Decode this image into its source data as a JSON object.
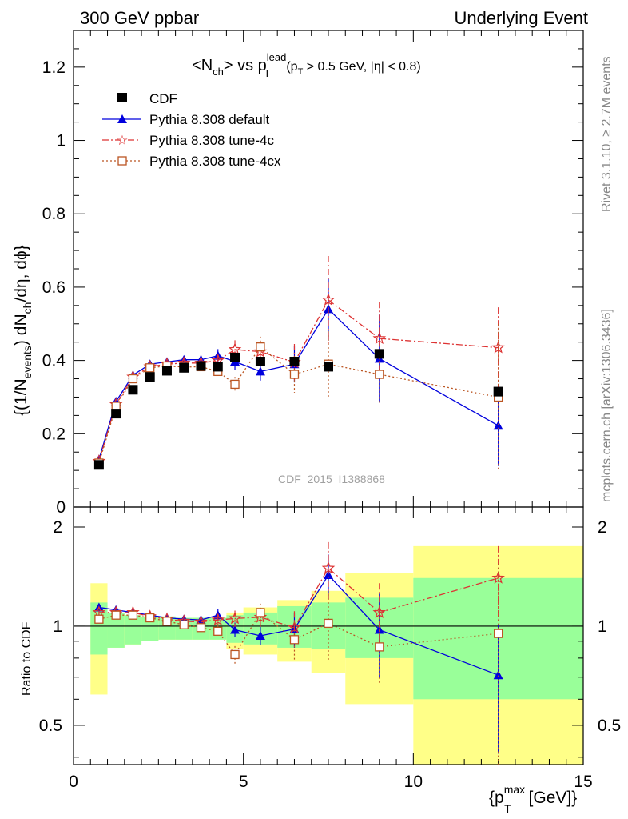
{
  "header": {
    "left_title": "300 GeV ppbar",
    "right_title": "Underlying Event"
  },
  "plot_title": {
    "lt": "<",
    "n_main": "N",
    "n_sub": "ch",
    "gt_vs": "> vs p",
    "p_sup": "lead",
    "p_sub": "T",
    "cuts_open": "(p",
    "cuts_sub": "T",
    "cuts_rest": " > 0.5 GeV, |η| < 0.8)"
  },
  "side_labels": {
    "rivet": "Rivet 3.1.10, ≥ 2.7M events",
    "mcplots": "mcplots.cern.ch [arXiv:1306.3436]"
  },
  "watermark": "CDF_2015_I1388868",
  "ylabel_main": {
    "p1": "{(1/N",
    "s1": "events",
    "p2": ") dN",
    "s2": "ch",
    "p3": "/dη, dϕ}"
  },
  "ylabel_ratio": "Ratio to CDF",
  "xlabel": {
    "p1": "{p",
    "sup": "max",
    "sub": "T",
    "p2": " [GeV]}"
  },
  "legend": [
    {
      "label": "CDF"
    },
    {
      "label": "Pythia 8.308 default"
    },
    {
      "label": "Pythia 8.308 tune-4c"
    },
    {
      "label": "Pythia 8.308 tune-4cx"
    }
  ],
  "chart_data": {
    "type": "scatter",
    "x_range": [
      0,
      15
    ],
    "main_ylim": [
      0,
      1.3
    ],
    "ratio_ylim": [
      0.38,
      2.3
    ],
    "ratio_log_scale": true,
    "x_ticks": [
      "0",
      "5",
      "10",
      "15"
    ],
    "main_y_ticks": [
      "0",
      "0.2",
      "0.4",
      "0.6",
      "0.8",
      "1",
      "1.2"
    ],
    "ratio_y_ticks": [
      "0.5",
      "1",
      "2"
    ],
    "colors": {
      "cdf": "#000000",
      "default": "#0000dd",
      "tune4c": "#dd3333",
      "tune4cx": "#bb5522",
      "band_inner": "#99ff99",
      "band_outer": "#ffff88"
    },
    "x": [
      0.75,
      1.25,
      1.75,
      2.25,
      2.75,
      3.25,
      3.75,
      4.25,
      4.75,
      5.5,
      6.5,
      7.5,
      9.0,
      12.5
    ],
    "bins": [
      [
        0.5,
        1.0
      ],
      [
        1.0,
        1.5
      ],
      [
        1.5,
        2.0
      ],
      [
        2.0,
        2.5
      ],
      [
        2.5,
        3.0
      ],
      [
        3.0,
        3.5
      ],
      [
        3.5,
        4.0
      ],
      [
        4.0,
        4.5
      ],
      [
        4.5,
        5.0
      ],
      [
        5.0,
        6.0
      ],
      [
        6.0,
        7.0
      ],
      [
        7.0,
        8.0
      ],
      [
        8.0,
        10.0
      ],
      [
        10.0,
        15.0
      ]
    ],
    "series": [
      {
        "name": "CDF",
        "key": "cdf",
        "values": [
          0.115,
          0.255,
          0.32,
          0.355,
          0.372,
          0.38,
          0.385,
          0.383,
          0.408,
          0.397,
          0.397,
          0.383,
          0.418,
          0.315
        ]
      },
      {
        "name": "Pythia 8.308 default",
        "key": "default",
        "values": [
          0.13,
          0.288,
          0.36,
          0.39,
          0.396,
          0.402,
          0.402,
          0.413,
          0.397,
          0.37,
          0.39,
          0.54,
          0.405,
          0.222
        ],
        "errors": [
          0.004,
          0.006,
          0.007,
          0.008,
          0.009,
          0.01,
          0.012,
          0.018,
          0.022,
          0.025,
          0.05,
          0.085,
          0.12,
          0.11
        ]
      },
      {
        "name": "Pythia 8.308 tune-4c",
        "key": "tune4c",
        "values": [
          0.125,
          0.28,
          0.355,
          0.383,
          0.39,
          0.393,
          0.393,
          0.4,
          0.43,
          0.424,
          0.395,
          0.565,
          0.46,
          0.435
        ],
        "errors": [
          0.004,
          0.006,
          0.007,
          0.008,
          0.009,
          0.01,
          0.012,
          0.015,
          0.025,
          0.03,
          0.05,
          0.12,
          0.1,
          0.11
        ]
      },
      {
        "name": "Pythia 8.308 tune-4cx",
        "key": "tune4cx",
        "values": [
          0.12,
          0.275,
          0.35,
          0.38,
          0.385,
          0.382,
          0.383,
          0.37,
          0.335,
          0.437,
          0.362,
          0.39,
          0.362,
          0.3
        ],
        "errors": [
          0.004,
          0.006,
          0.007,
          0.008,
          0.009,
          0.01,
          0.012,
          0.015,
          0.02,
          0.028,
          0.05,
          0.09,
          0.08,
          0.2
        ]
      }
    ],
    "ratio_series": [
      {
        "key": "default",
        "values": [
          1.14,
          1.12,
          1.1,
          1.08,
          1.06,
          1.05,
          1.045,
          1.08,
          0.975,
          0.935,
          0.98,
          1.43,
          0.975,
          0.71
        ],
        "errors": [
          0.02,
          0.02,
          0.02,
          0.02,
          0.02,
          0.02,
          0.03,
          0.045,
          0.05,
          0.06,
          0.12,
          0.22,
          0.28,
          0.3
        ]
      },
      {
        "key": "tune4c",
        "values": [
          1.1,
          1.1,
          1.1,
          1.07,
          1.05,
          1.035,
          1.03,
          1.045,
          1.055,
          1.065,
          0.99,
          1.5,
          1.1,
          1.4
        ],
        "errors": [
          0.02,
          0.02,
          0.02,
          0.02,
          0.02,
          0.02,
          0.03,
          0.04,
          0.06,
          0.07,
          0.12,
          0.3,
          0.25,
          0.35
        ]
      },
      {
        "key": "tune4cx",
        "values": [
          1.05,
          1.08,
          1.08,
          1.06,
          1.035,
          1.01,
          0.99,
          0.965,
          0.82,
          1.1,
          0.91,
          1.02,
          0.865,
          0.95
        ],
        "errors": [
          0.02,
          0.02,
          0.02,
          0.02,
          0.02,
          0.02,
          0.03,
          0.04,
          0.05,
          0.07,
          0.12,
          0.23,
          0.2,
          0.6
        ]
      }
    ],
    "ratio_band_inner": [
      [
        0.82,
        1.18
      ],
      [
        0.86,
        1.1
      ],
      [
        0.88,
        1.08
      ],
      [
        0.9,
        1.07
      ],
      [
        0.91,
        1.07
      ],
      [
        0.91,
        1.06
      ],
      [
        0.91,
        1.06
      ],
      [
        0.91,
        1.06
      ],
      [
        0.89,
        1.08
      ],
      [
        0.88,
        1.1
      ],
      [
        0.86,
        1.15
      ],
      [
        0.85,
        1.18
      ],
      [
        0.8,
        1.22
      ],
      [
        0.6,
        1.4
      ]
    ],
    "ratio_band_outer": [
      [
        0.62,
        1.35
      ],
      [
        0.86,
        1.1
      ],
      [
        0.88,
        1.08
      ],
      [
        0.9,
        1.07
      ],
      [
        0.91,
        1.07
      ],
      [
        0.91,
        1.06
      ],
      [
        0.91,
        1.06
      ],
      [
        0.91,
        1.06
      ],
      [
        0.85,
        1.1
      ],
      [
        0.82,
        1.14
      ],
      [
        0.78,
        1.2
      ],
      [
        0.72,
        1.28
      ],
      [
        0.58,
        1.45
      ],
      [
        0.36,
        1.75
      ]
    ]
  }
}
